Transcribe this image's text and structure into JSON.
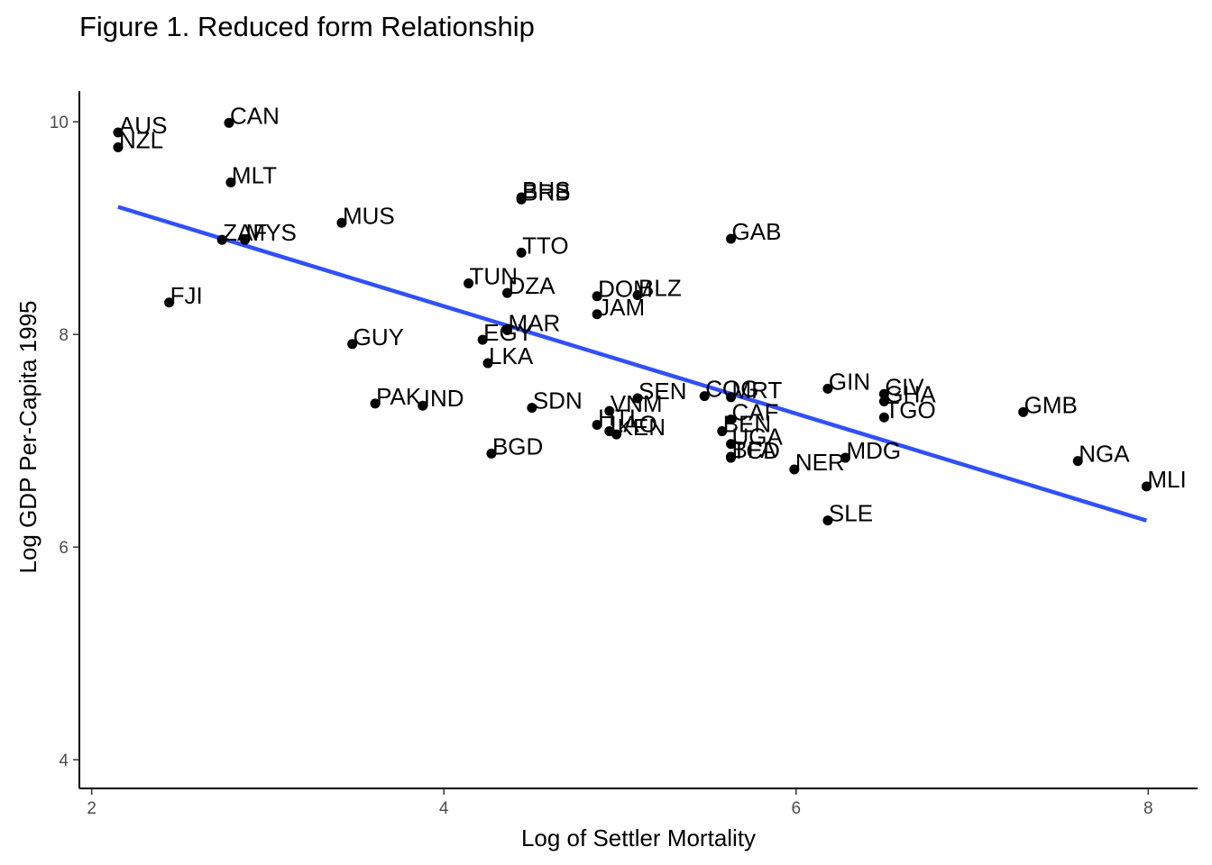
{
  "chart_data": {
    "type": "scatter",
    "title": "Figure 1. Reduced form Relationship",
    "xlabel": "Log of Settler Mortality",
    "ylabel": "Log GDP Per-Capita 1995",
    "xlim": [
      1.93,
      8.28
    ],
    "ylim": [
      3.73,
      10.29
    ],
    "xticks": [
      "2",
      "4",
      "6",
      "8"
    ],
    "yticks": [
      "4",
      "6",
      "8",
      "10"
    ],
    "grid": false,
    "legend": "none",
    "point_color": "#000000",
    "line_color": "#3050F8",
    "fit_line": {
      "x": [
        2.15,
        7.99
      ],
      "y": [
        9.2,
        6.25
      ]
    },
    "points": [
      {
        "label": "AUS",
        "x": 2.15,
        "y": 9.9
      },
      {
        "label": "NZL",
        "x": 2.15,
        "y": 9.76
      },
      {
        "label": "CAN",
        "x": 2.78,
        "y": 9.99
      },
      {
        "label": "MLT",
        "x": 2.79,
        "y": 9.43
      },
      {
        "label": "BHS",
        "x": 4.44,
        "y": 9.29
      },
      {
        "label": "BRB",
        "x": 4.44,
        "y": 9.27
      },
      {
        "label": "MUS",
        "x": 3.42,
        "y": 9.05
      },
      {
        "label": "ZAF",
        "x": 2.74,
        "y": 8.89
      },
      {
        "label": "MYS",
        "x": 2.87,
        "y": 8.89
      },
      {
        "label": "GAB",
        "x": 5.63,
        "y": 8.9
      },
      {
        "label": "TTO",
        "x": 4.44,
        "y": 8.77
      },
      {
        "label": "FJI",
        "x": 2.44,
        "y": 8.3
      },
      {
        "label": "TUN",
        "x": 4.14,
        "y": 8.48
      },
      {
        "label": "DZA",
        "x": 4.36,
        "y": 8.39
      },
      {
        "label": "DOM",
        "x": 4.87,
        "y": 8.36
      },
      {
        "label": "BLZ",
        "x": 5.1,
        "y": 8.37
      },
      {
        "label": "JAM",
        "x": 4.87,
        "y": 8.19
      },
      {
        "label": "MAR",
        "x": 4.36,
        "y": 8.04
      },
      {
        "label": "EGY",
        "x": 4.22,
        "y": 7.95
      },
      {
        "label": "GUY",
        "x": 3.48,
        "y": 7.91
      },
      {
        "label": "LKA",
        "x": 4.25,
        "y": 7.73
      },
      {
        "label": "GIN",
        "x": 6.18,
        "y": 7.49
      },
      {
        "label": "CIV",
        "x": 6.5,
        "y": 7.44
      },
      {
        "label": "GHA",
        "x": 6.5,
        "y": 7.37
      },
      {
        "label": "TGO",
        "x": 6.5,
        "y": 7.22
      },
      {
        "label": "GMB",
        "x": 7.29,
        "y": 7.27
      },
      {
        "label": "COG",
        "x": 5.48,
        "y": 7.42
      },
      {
        "label": "MRT",
        "x": 5.63,
        "y": 7.41
      },
      {
        "label": "SEN",
        "x": 5.1,
        "y": 7.4
      },
      {
        "label": "PAK",
        "x": 3.61,
        "y": 7.35
      },
      {
        "label": "IND",
        "x": 3.88,
        "y": 7.33
      },
      {
        "label": "SDN",
        "x": 4.5,
        "y": 7.31
      },
      {
        "label": "VNM",
        "x": 4.94,
        "y": 7.28
      },
      {
        "label": "HTI",
        "x": 4.87,
        "y": 7.15
      },
      {
        "label": "LAO",
        "x": 4.94,
        "y": 7.09
      },
      {
        "label": "KEN",
        "x": 4.98,
        "y": 7.06
      },
      {
        "label": "CAF",
        "x": 5.63,
        "y": 7.2
      },
      {
        "label": "BEN",
        "x": 5.58,
        "y": 7.09
      },
      {
        "label": "UGA",
        "x": 5.63,
        "y": 6.97
      },
      {
        "label": "BFA",
        "x": 5.63,
        "y": 6.85
      },
      {
        "label": "TCD",
        "x": 5.63,
        "y": 6.84
      },
      {
        "label": "NER",
        "x": 5.99,
        "y": 6.73
      },
      {
        "label": "MDG",
        "x": 6.28,
        "y": 6.84
      },
      {
        "label": "BGD",
        "x": 4.27,
        "y": 6.88
      },
      {
        "label": "NGA",
        "x": 7.6,
        "y": 6.81
      },
      {
        "label": "MLI",
        "x": 7.99,
        "y": 6.57
      },
      {
        "label": "SLE",
        "x": 6.18,
        "y": 6.25
      }
    ]
  }
}
